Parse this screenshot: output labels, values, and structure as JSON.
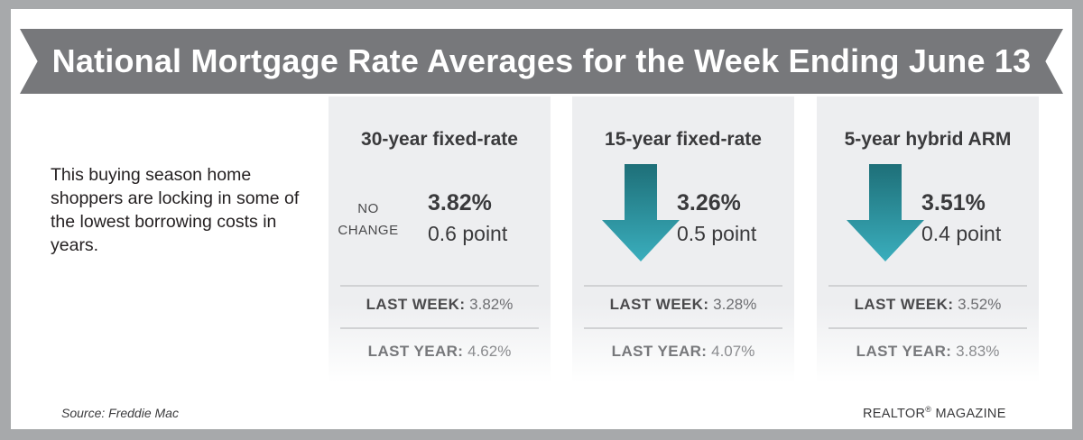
{
  "title": "National Mortgage Rate Averages for the Week Ending June 13",
  "intro": "This buying season home shoppers are locking in some of the lowest borrowing costs in years.",
  "cards": [
    {
      "heading": "30-year fixed-rate",
      "indicator": "none",
      "indicator_text_1": "NO",
      "indicator_text_2": "CHANGE",
      "rate": "3.82%",
      "change": "0.6 point",
      "last_week_label": "LAST WEEK:",
      "last_week_value": "3.82%",
      "last_year_label": "LAST YEAR:",
      "last_year_value": "4.62%"
    },
    {
      "heading": "15-year fixed-rate",
      "indicator": "down-arrow-icon",
      "rate": "3.26%",
      "change": "0.5 point",
      "last_week_label": "LAST WEEK:",
      "last_week_value": "3.28%",
      "last_year_label": "LAST YEAR:",
      "last_year_value": "4.07%"
    },
    {
      "heading": "5-year hybrid ARM",
      "indicator": "down-arrow-icon",
      "rate": "3.51%",
      "change": "0.4 point",
      "last_week_label": "LAST WEEK:",
      "last_week_value": "3.52%",
      "last_year_label": "LAST YEAR:",
      "last_year_value": "3.83%"
    }
  ],
  "source": "Source: Freddie Mac",
  "credit_brand": "REALTOR",
  "credit_mark": "®",
  "credit_suffix": "MAGAZINE",
  "colors": {
    "frame": "#a7a9ab",
    "banner": "#77787b",
    "card": "#edeef0",
    "arrow_top": "#1e6f78",
    "arrow_bottom": "#3aaebd"
  }
}
